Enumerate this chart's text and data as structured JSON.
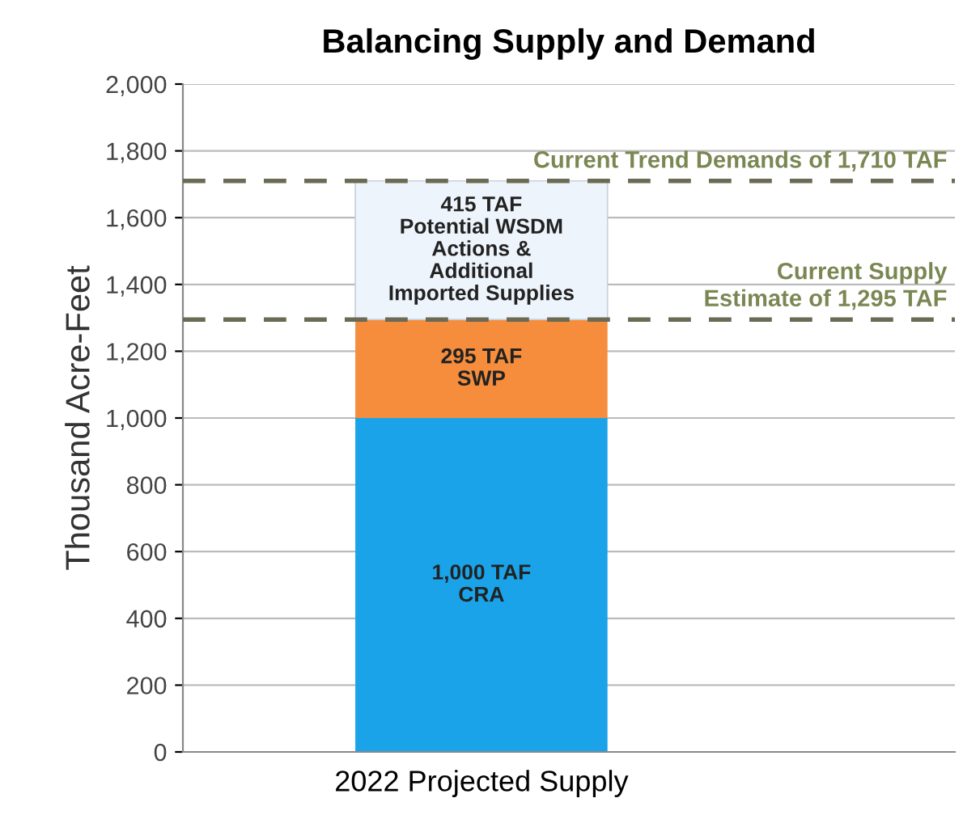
{
  "chart_data": {
    "type": "bar",
    "title": "Balancing Supply and Demand",
    "ylabel": "Thousand Acre-Feet",
    "categories": [
      "2022 Projected Supply"
    ],
    "stacked": true,
    "series": [
      {
        "color": "#1aa3e8",
        "values": [
          1000
        ],
        "value_labels": [
          "1,000 TAF\nCRA"
        ]
      },
      {
        "color": "#f58d3c",
        "values": [
          295
        ],
        "value_labels": [
          "295 TAF\nSWP"
        ]
      },
      {
        "color": "#eef4fb",
        "values": [
          415
        ],
        "value_labels": [
          "415 TAF\nPotential WSDM\nActions &\nAdditional\nImported Supplies"
        ]
      }
    ],
    "ylim": [
      0,
      2000
    ],
    "yticks": [
      {
        "value": 0,
        "label": "0"
      },
      {
        "value": 200,
        "label": "200"
      },
      {
        "value": 400,
        "label": "400"
      },
      {
        "value": 600,
        "label": "600"
      },
      {
        "value": 800,
        "label": "800"
      },
      {
        "value": 1000,
        "label": "1,000"
      },
      {
        "value": 1200,
        "label": "1,200"
      },
      {
        "value": 1400,
        "label": "1,400"
      },
      {
        "value": 1600,
        "label": "1,600"
      },
      {
        "value": 1800,
        "label": "1,800"
      },
      {
        "value": 2000,
        "label": "2,000"
      }
    ],
    "grid": "y",
    "ref_lines": [
      {
        "axis": "y",
        "value": 1710,
        "label": "Current Trend Demands of 1,710 TAF",
        "color": "#6b6b55",
        "line_style": "dashed"
      },
      {
        "axis": "y",
        "value": 1295,
        "label": "Current Supply\nEstimate of 1,295 TAF",
        "color": "#6b6b55",
        "line_style": "dashed"
      }
    ]
  }
}
